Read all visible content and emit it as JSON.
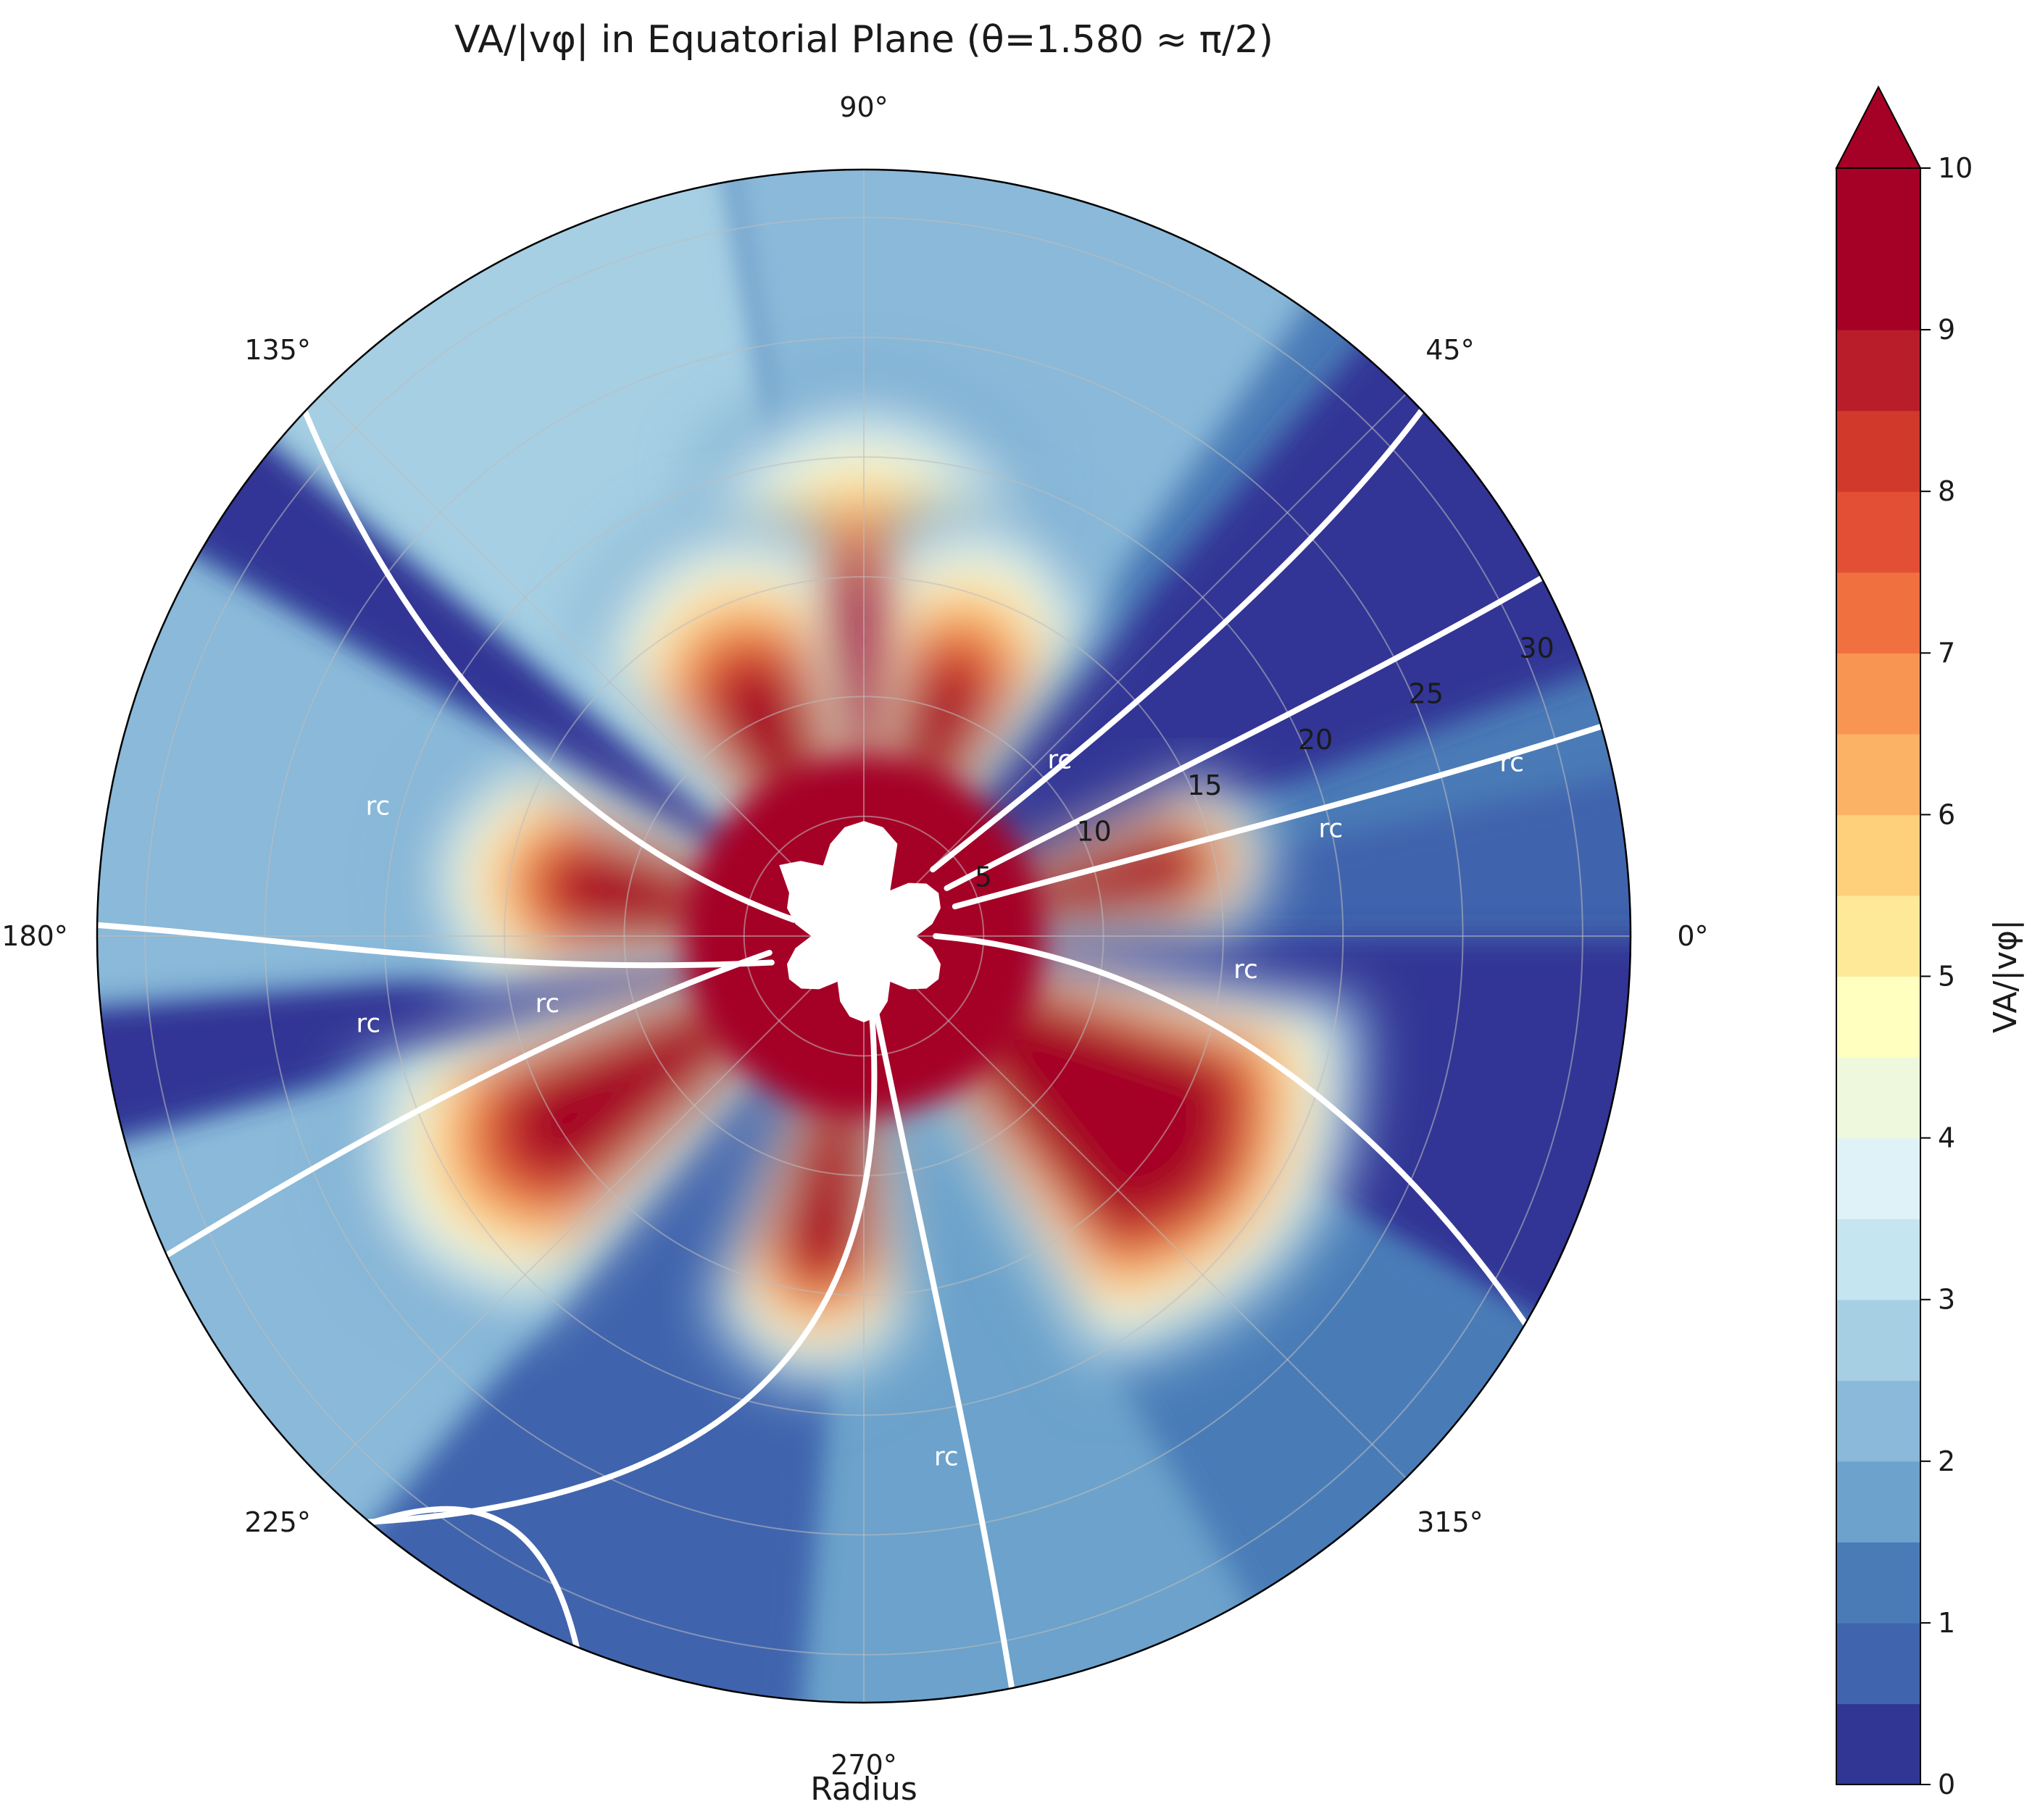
{
  "chart_data": {
    "type": "polar-filled-contour",
    "title": "VA/|vφ| in Equatorial Plane (θ=1.580 ≈ π/2)",
    "xlabel": "Radius",
    "angle_ticks": [
      "0°",
      "45°",
      "90°",
      "135°",
      "180°",
      "225°",
      "270°",
      "315°"
    ],
    "angle_tick_degrees": [
      0,
      45,
      90,
      135,
      180,
      225,
      270,
      315
    ],
    "radial_ticks": [
      "5",
      "10",
      "15",
      "20",
      "25",
      "30"
    ],
    "radial_tick_values": [
      5,
      10,
      15,
      20,
      25,
      30
    ],
    "rlim": [
      0,
      32
    ],
    "grid": true,
    "colorbar": {
      "label": "VA/|vφ|",
      "range": [
        0,
        10
      ],
      "extend": "max",
      "ticks": [
        "0",
        "1",
        "2",
        "3",
        "4",
        "5",
        "6",
        "7",
        "8",
        "9",
        "10"
      ],
      "tick_values": [
        0,
        1,
        2,
        3,
        4,
        5,
        6,
        7,
        8,
        9,
        10
      ],
      "level_step": 0.5,
      "colors": [
        "#313695",
        "#4064ad",
        "#4a7bb7",
        "#6ca2cb",
        "#8ab9d9",
        "#a6cfe3",
        "#c5e5f0",
        "#dff2f7",
        "#eef8dd",
        "#ffffbf",
        "#fee999",
        "#fed07c",
        "#fbb264",
        "#f89553",
        "#f0703f",
        "#e24f34",
        "#d1392b",
        "#b91d2a",
        "#a50026"
      ],
      "over_color": "#a50026"
    },
    "contour_line": {
      "label": "rc",
      "level": 1.0,
      "color": "#ffffff"
    },
    "rc_label_positions": [
      {
        "deg": 165,
        "r": 21
      },
      {
        "deg": 190,
        "r": 21
      },
      {
        "deg": 192,
        "r": 13.5
      },
      {
        "deg": 15,
        "r": 28
      },
      {
        "deg": 13,
        "r": 20
      },
      {
        "deg": 42,
        "r": 11
      },
      {
        "deg": 355,
        "r": 16
      },
      {
        "deg": 279,
        "r": 22
      }
    ],
    "lobes": [
      {
        "angle": 90,
        "inner_r": 3,
        "red_r": 16.5,
        "extent_r": 27,
        "width_deg": 20
      },
      {
        "angle": 115,
        "inner_r": 3,
        "red_r": 13.5,
        "extent_r": 22,
        "width_deg": 20
      },
      {
        "angle": 70,
        "inner_r": 3,
        "red_r": 13,
        "extent_r": 22,
        "width_deg": 17
      },
      {
        "angle": 13,
        "inner_r": 3,
        "red_r": 16.5,
        "extent_r": 20,
        "width_deg": 13
      },
      {
        "angle": 170,
        "inner_r": 3,
        "red_r": 14.5,
        "extent_r": 22,
        "width_deg": 18
      },
      {
        "angle": 212,
        "inner_r": 3,
        "red_r": 19,
        "extent_r": 28,
        "width_deg": 18
      },
      {
        "angle": 262,
        "inner_r": 3,
        "red_r": 16,
        "extent_r": 22,
        "width_deg": 15
      },
      {
        "angle": 325,
        "inner_r": 3,
        "red_r": 20,
        "extent_r": 27,
        "width_deg": 28
      }
    ]
  }
}
